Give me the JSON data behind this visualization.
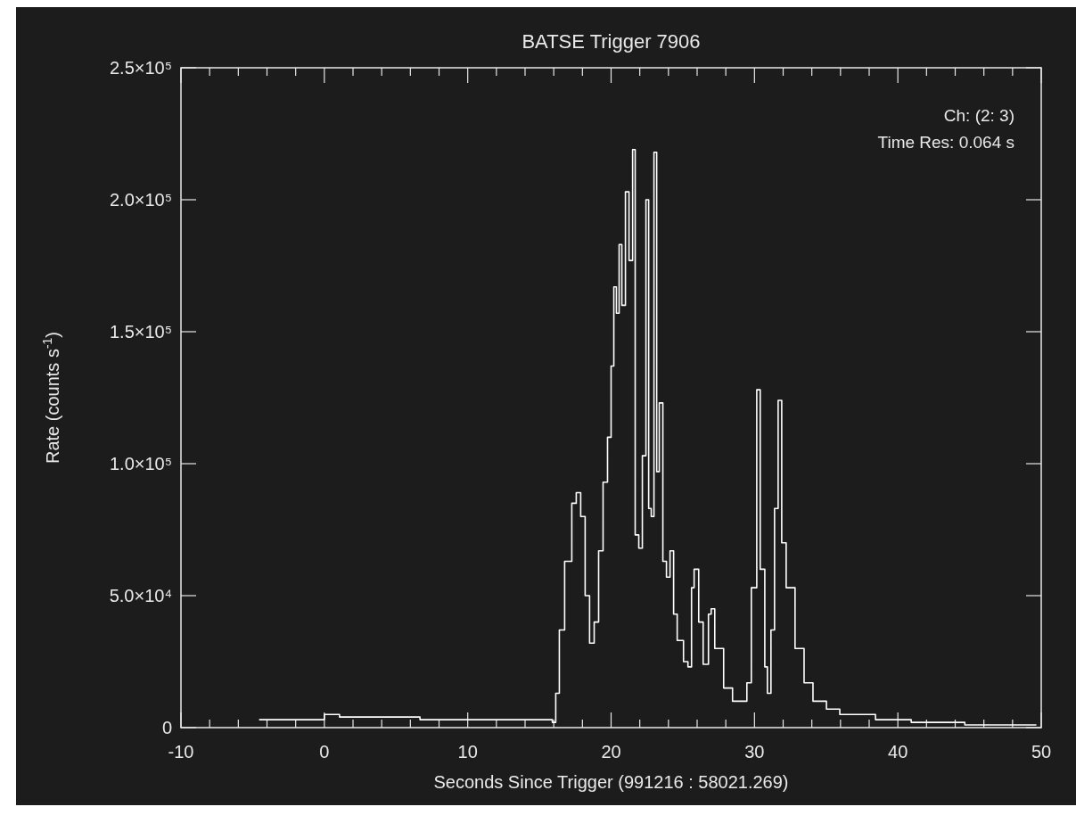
{
  "chart_data": {
    "type": "step",
    "title": "BATSE Trigger 7906",
    "xlabel": "Seconds Since Trigger (991216 : 58021.269)",
    "ylabel": "Rate (counts s$^{-1}$)",
    "annotations": [
      "Ch: (2: 3)",
      "Time Res: 0.064 s"
    ],
    "xlim": [
      -10,
      50
    ],
    "ylim": [
      0,
      250000
    ],
    "xticks": [
      -10,
      {
        "value": -8,
        "label": null
      },
      {
        "value": -6,
        "label": null
      },
      {
        "value": -4,
        "label": null
      },
      {
        "value": -2,
        "label": null
      },
      0,
      {
        "value": 2,
        "label": null
      },
      {
        "value": 4,
        "label": null
      },
      {
        "value": 6,
        "label": null
      },
      {
        "value": 8,
        "label": null
      },
      10,
      {
        "value": 12,
        "label": null
      },
      {
        "value": 14,
        "label": null
      },
      {
        "value": 16,
        "label": null
      },
      {
        "value": 18,
        "label": null
      },
      20,
      {
        "value": 22,
        "label": null
      },
      {
        "value": 24,
        "label": null
      },
      {
        "value": 26,
        "label": null
      },
      {
        "value": 28,
        "label": null
      },
      30,
      {
        "value": 32,
        "label": null
      },
      {
        "value": 34,
        "label": null
      },
      {
        "value": 36,
        "label": null
      },
      {
        "value": 38,
        "label": null
      },
      40,
      {
        "value": 42,
        "label": null
      },
      {
        "value": 44,
        "label": null
      },
      {
        "value": 46,
        "label": null
      },
      {
        "value": 48,
        "label": null
      },
      50
    ],
    "yticks": [
      0,
      {
        "value": 50000,
        "label": "5.0×10⁴"
      },
      {
        "value": 100000,
        "label": "1.0×10⁵"
      },
      {
        "value": 150000,
        "label": "1.5×10⁵"
      },
      {
        "value": 200000,
        "label": "2.0×10⁵"
      },
      {
        "value": 250000,
        "label": "2.5×10⁵"
      }
    ],
    "grid": false,
    "series": [
      {
        "color": "#ffffff",
        "x": [
          -4.55,
          -0.81,
          0,
          1.06,
          6.67,
          12.9,
          15.9,
          16.14,
          16.39,
          16.76,
          17.26,
          17.57,
          17.88,
          18.19,
          18.5,
          18.82,
          19.13,
          19.44,
          19.75,
          20.0,
          20.19,
          20.37,
          20.56,
          20.75,
          21.0,
          21.25,
          21.5,
          21.68,
          21.93,
          22.18,
          22.43,
          22.62,
          22.8,
          22.99,
          23.18,
          23.36,
          23.61,
          23.86,
          24.11,
          24.36,
          24.61,
          25.05,
          25.36,
          25.61,
          25.79,
          26.11,
          26.42,
          26.6,
          26.79,
          26.98,
          27.23,
          27.85,
          28.47,
          29.1,
          29.47,
          29.78,
          30.16,
          30.4,
          30.72,
          30.9,
          31.15,
          31.4,
          31.65,
          31.9,
          32.21,
          32.83,
          33.46,
          34.08,
          35.02,
          35.95,
          38.44,
          40.93,
          44.67,
          49.66
        ],
        "values": [
          3000,
          3000,
          5000,
          4000,
          3000,
          3000,
          2000,
          13000,
          37000,
          63000,
          85000,
          89000,
          80000,
          50000,
          32000,
          40000,
          67000,
          93000,
          110000,
          137000,
          167000,
          157000,
          183000,
          160000,
          203000,
          177000,
          219000,
          73000,
          68000,
          103000,
          200000,
          83000,
          80000,
          218000,
          97000,
          123000,
          63000,
          57000,
          67000,
          43000,
          33000,
          25000,
          23000,
          53000,
          60000,
          40000,
          24000,
          24000,
          43000,
          45000,
          30000,
          15000,
          10000,
          10000,
          17000,
          53000,
          128000,
          60000,
          23000,
          13000,
          37000,
          83000,
          124000,
          70000,
          53000,
          30000,
          17000,
          10000,
          7000,
          5000,
          3000,
          2000,
          1000,
          1000
        ]
      }
    ]
  }
}
